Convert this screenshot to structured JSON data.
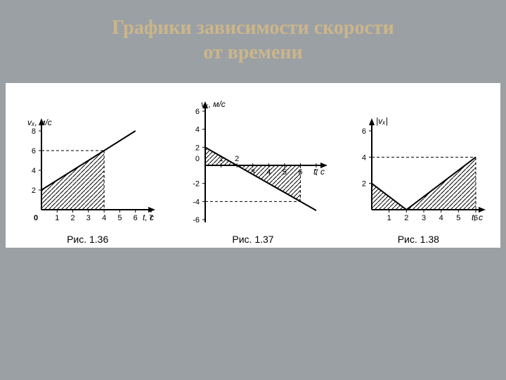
{
  "title_line1": "Графики зависимости скорости",
  "title_line2": "от времени",
  "title_color": "#cbb68b",
  "title_fontsize": 28,
  "background_color": "#9ba0a4",
  "panel_bg": "#ffffff",
  "stroke_color": "#000000",
  "hatch_spacing": 6,
  "fig1": {
    "caption": "Рис. 1.36",
    "ylabel": "vₓ, м/c",
    "xlabel": "t, c",
    "xlim": [
      0,
      7
    ],
    "ylim": [
      0,
      8
    ],
    "xtick_step": 1,
    "ytick_step": 2,
    "x_ticks": [
      "0",
      "1",
      "2",
      "3",
      "4",
      "5",
      "6",
      "7"
    ],
    "y_ticks": [
      "2",
      "4",
      "6",
      "8"
    ],
    "line": {
      "points": [
        [
          0,
          2
        ],
        [
          6,
          8
        ]
      ],
      "stroke_width": 2
    },
    "hatch_poly": [
      [
        0,
        0
      ],
      [
        0,
        2
      ],
      [
        4,
        6
      ],
      [
        4,
        0
      ]
    ],
    "dashed": [
      [
        [
          0,
          6
        ],
        [
          4,
          6
        ]
      ],
      [
        [
          4,
          6
        ],
        [
          4,
          0
        ]
      ]
    ]
  },
  "fig2": {
    "caption": "Рис. 1.37",
    "ylabel": "vₓ, м/c",
    "xlabel": "t, c",
    "xlim": [
      0,
      7
    ],
    "ylim": [
      -6,
      6
    ],
    "xtick_step": 1,
    "ytick_step": 2,
    "x_ticks_above": [
      "1",
      "2"
    ],
    "x_ticks_below": [
      "3",
      "4",
      "5",
      "6",
      "7"
    ],
    "y_ticks_pos": [
      "2",
      "4",
      "6"
    ],
    "y_ticks_neg": [
      "-2",
      "-4",
      "-6"
    ],
    "origin_label": "0",
    "line": {
      "points": [
        [
          0,
          2
        ],
        [
          7,
          -5
        ]
      ],
      "stroke_width": 2
    },
    "hatch_poly_upper": [
      [
        0,
        0
      ],
      [
        0,
        2
      ],
      [
        2,
        0
      ]
    ],
    "hatch_poly_lower": [
      [
        2,
        0
      ],
      [
        6,
        0
      ],
      [
        6,
        -4
      ]
    ],
    "dashed": [
      [
        [
          0,
          -4
        ],
        [
          6,
          -4
        ]
      ],
      [
        [
          6,
          0
        ],
        [
          6,
          -4
        ]
      ]
    ]
  },
  "fig3": {
    "caption": "Рис. 1.38",
    "ylabel": "|vₓ|",
    "xlabel": "t, c",
    "xlim": [
      0,
      6
    ],
    "ylim": [
      0,
      6
    ],
    "xtick_step": 1,
    "ytick_step": 2,
    "x_ticks": [
      "1",
      "2",
      "3",
      "4",
      "5",
      "6"
    ],
    "y_ticks": [
      "2",
      "4",
      "6"
    ],
    "line1": {
      "points": [
        [
          0,
          2
        ],
        [
          2,
          0
        ]
      ],
      "stroke_width": 2
    },
    "line2": {
      "points": [
        [
          2,
          0
        ],
        [
          6,
          4
        ]
      ],
      "stroke_width": 2
    },
    "hatch_poly1": [
      [
        0,
        0
      ],
      [
        0,
        2
      ],
      [
        2,
        0
      ]
    ],
    "hatch_poly2": [
      [
        2,
        0
      ],
      [
        6,
        4
      ],
      [
        6,
        0
      ]
    ],
    "dashed": [
      [
        [
          0,
          4
        ],
        [
          6,
          4
        ]
      ],
      [
        [
          6,
          4
        ],
        [
          6,
          0
        ]
      ]
    ]
  }
}
